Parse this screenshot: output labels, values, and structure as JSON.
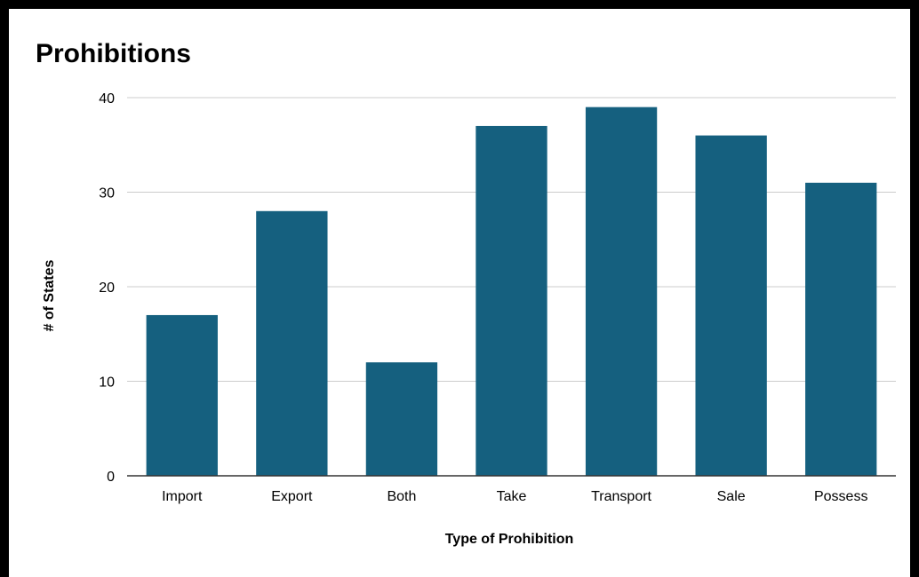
{
  "chart_data": {
    "type": "bar",
    "title": "Prohibitions",
    "xlabel": "Type of Prohibition",
    "ylabel": "# of States",
    "categories": [
      "Import",
      "Export",
      "Both",
      "Take",
      "Transport",
      "Sale",
      "Possess"
    ],
    "values": [
      17,
      28,
      12,
      37,
      39,
      36,
      31
    ],
    "ylim": [
      0,
      40
    ],
    "yticks": [
      0,
      10,
      20,
      30,
      40
    ],
    "grid": true,
    "legend": "none",
    "bar_color": "#15607f",
    "grid_color": "#cccccc",
    "axis_color": "#333333"
  }
}
